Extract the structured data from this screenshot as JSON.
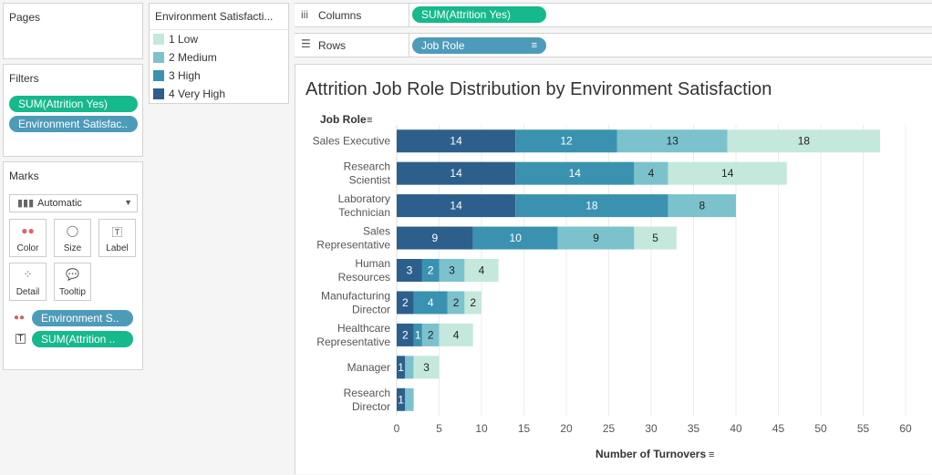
{
  "pages": {
    "title": "Pages"
  },
  "filters": {
    "title": "Filters",
    "items": [
      "SUM(Attrition Yes)",
      "Environment Satisfac.."
    ]
  },
  "marks": {
    "title": "Marks",
    "type_select": "Automatic",
    "buttons": [
      "Color",
      "Size",
      "Label",
      "Detail",
      "Tooltip"
    ],
    "fields": [
      "Environment S..",
      "SUM(Attrition .."
    ]
  },
  "legend": {
    "title": "Environment Satisfacti...",
    "items": [
      {
        "label": "1 Low",
        "color": "#c5e8dc"
      },
      {
        "label": "2 Medium",
        "color": "#7cc2cd"
      },
      {
        "label": "3 High",
        "color": "#3a92b0"
      },
      {
        "label": "4 Very High",
        "color": "#2d5f8c"
      }
    ]
  },
  "shelves": {
    "columns_label": "Columns",
    "columns_pill": "SUM(Attrition Yes)",
    "rows_label": "Rows",
    "rows_pill": "Job Role"
  },
  "chart_data": {
    "type": "bar",
    "orientation": "horizontal",
    "stacked": true,
    "title": "Attrition Job Role Distribution by Environment Satisfaction",
    "ylabel": "Job Role",
    "xlabel": "Number of Turnovers",
    "xlim": [
      0,
      60
    ],
    "xticks": [
      0,
      5,
      10,
      15,
      20,
      25,
      30,
      35,
      40,
      45,
      50,
      55,
      60
    ],
    "grid": true,
    "categories": [
      [
        "Sales Executive"
      ],
      [
        "Research",
        "Scientist"
      ],
      [
        "Laboratory",
        "Technician"
      ],
      [
        "Sales",
        "Representative"
      ],
      [
        "Human",
        "Resources"
      ],
      [
        "Manufacturing",
        "Director"
      ],
      [
        "Healthcare",
        "Representative"
      ],
      [
        "Manager"
      ],
      [
        "Research",
        "Director"
      ]
    ],
    "series": [
      {
        "name": "4 Very High",
        "color": "#2d5f8c",
        "text_color": "#ffffff",
        "values": [
          14,
          14,
          14,
          9,
          3,
          2,
          2,
          1,
          1
        ]
      },
      {
        "name": "3 High",
        "color": "#3a92b0",
        "text_color": "#ffffff",
        "values": [
          12,
          14,
          18,
          10,
          2,
          4,
          1,
          0,
          0
        ]
      },
      {
        "name": "2 Medium",
        "color": "#7cc2cd",
        "text_color": "#222222",
        "values": [
          13,
          4,
          8,
          9,
          3,
          2,
          2,
          1,
          1
        ]
      },
      {
        "name": "1 Low",
        "color": "#c5e8dc",
        "text_color": "#222222",
        "values": [
          18,
          14,
          0,
          5,
          4,
          2,
          4,
          3,
          0
        ]
      }
    ],
    "data_labels": [
      [
        "14",
        "12",
        "13",
        "18"
      ],
      [
        "14",
        "14",
        "4",
        "14"
      ],
      [
        "14",
        "18",
        "8",
        ""
      ],
      [
        "9",
        "10",
        "9",
        "5"
      ],
      [
        "3",
        "2",
        "3",
        "4"
      ],
      [
        "2",
        "4",
        "2",
        "2"
      ],
      [
        "2",
        "1",
        "2",
        "4"
      ],
      [
        "1",
        "",
        "",
        "3"
      ],
      [
        "1",
        "",
        "",
        ""
      ]
    ]
  }
}
